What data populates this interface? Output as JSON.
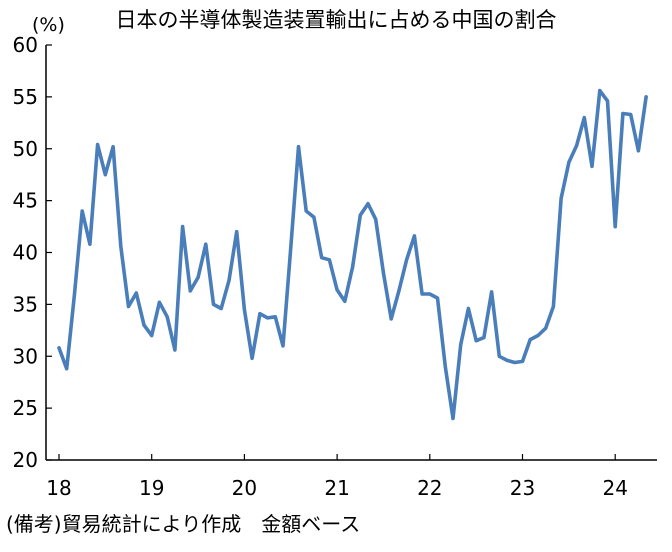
{
  "chart_data": {
    "type": "line",
    "title": "日本の半導体製造装置輸出に占める中国の割合",
    "ylabel": "(%)",
    "xlabel": "",
    "ylim": [
      20,
      60
    ],
    "yticks": [
      20,
      25,
      30,
      35,
      40,
      45,
      50,
      55,
      60
    ],
    "xlim": [
      2018,
      2024.33
    ],
    "xticks": [
      "18",
      "19",
      "20",
      "21",
      "22",
      "23",
      "24"
    ],
    "grid": false,
    "line_color": "#4a7ebb",
    "series": [
      {
        "x_start": "2018-01",
        "frequency": "monthly",
        "values": [
          30.8,
          28.8,
          36.0,
          44.0,
          40.8,
          50.4,
          47.5,
          50.2,
          40.6,
          34.8,
          36.1,
          33.0,
          32.0,
          35.2,
          33.8,
          30.6,
          42.5,
          36.3,
          37.6,
          40.8,
          35.0,
          34.6,
          37.3,
          42.0,
          34.5,
          29.8,
          34.1,
          33.7,
          33.8,
          31.0,
          40.5,
          50.2,
          44.0,
          43.4,
          39.5,
          39.3,
          36.4,
          35.3,
          38.6,
          43.6,
          44.7,
          43.2,
          38.0,
          33.6,
          36.3,
          39.3,
          41.6,
          36.0,
          36.0,
          35.6,
          29.0,
          24.0,
          31.1,
          34.6,
          31.5,
          31.8,
          36.2,
          30.0,
          29.6,
          29.4,
          29.5,
          31.6,
          32.0,
          32.7,
          34.8,
          45.2,
          48.7,
          50.3,
          53.0,
          48.3,
          55.6,
          54.6,
          42.5,
          53.4,
          53.3,
          49.8,
          55.0
        ]
      }
    ]
  },
  "note": "(備考)貿易統計により作成　金額ベース"
}
